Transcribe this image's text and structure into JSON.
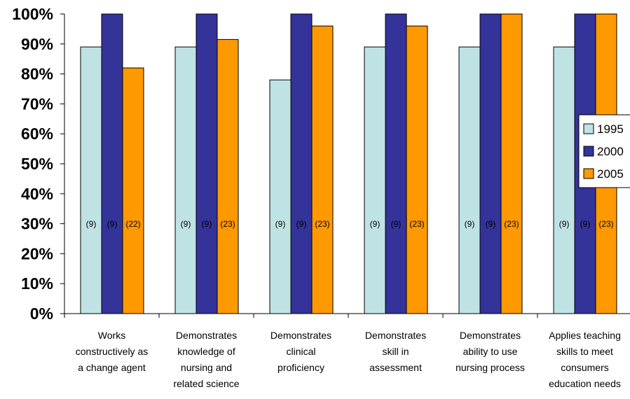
{
  "chart_data": {
    "type": "bar",
    "categories": [
      [
        "Works",
        "constructively as",
        "a change agent"
      ],
      [
        "Demonstrates",
        "knowledge of",
        "nursing and",
        "related science"
      ],
      [
        "Demonstrates",
        "clinical",
        "proficiency"
      ],
      [
        "Demonstrates",
        "skill in",
        "assessment"
      ],
      [
        "Demonstrates",
        "ability to use",
        "nursing process"
      ],
      [
        "Applies teaching",
        "skills to meet",
        "consumers",
        "education needs"
      ]
    ],
    "series": [
      {
        "name": "1995",
        "color": "#bfe3e4",
        "values": [
          89,
          89,
          78,
          89,
          89,
          89
        ],
        "labels": [
          "(9)",
          "(9)",
          "(9)",
          "(9)",
          "(9)",
          "(9)"
        ]
      },
      {
        "name": "2000",
        "color": "#333399",
        "values": [
          100,
          100,
          100,
          100,
          100,
          100
        ],
        "labels": [
          "(9)",
          "(9)",
          "(9)",
          "(9)",
          "(9)",
          "(9)"
        ]
      },
      {
        "name": "2005",
        "color": "#ff9900",
        "values": [
          82,
          91.5,
          96,
          96,
          100,
          100
        ],
        "labels": [
          "(22)",
          "(23)",
          "(23)",
          "(23)",
          "(23)",
          "(23)"
        ]
      }
    ],
    "label_value": 29,
    "yticks": [
      "0%",
      "10%",
      "20%",
      "30%",
      "40%",
      "50%",
      "60%",
      "70%",
      "80%",
      "90%",
      "100%"
    ],
    "ylim": [
      0,
      100
    ],
    "legend": "right",
    "grid": false
  }
}
